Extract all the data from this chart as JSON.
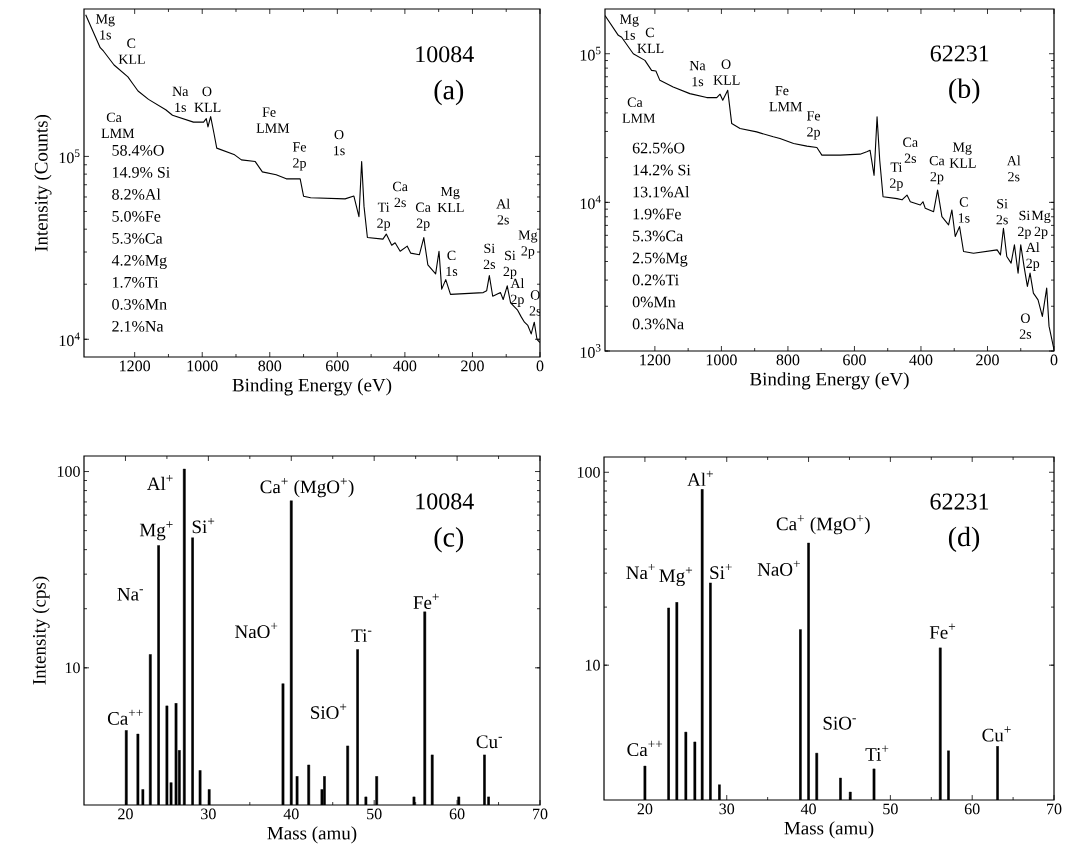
{
  "chart_data": [
    {
      "type": "line",
      "title": "10084",
      "subtitle": "(a)",
      "xlabel": "Binding Energy (eV)",
      "ylabel": "Intensity (Counts)",
      "log": "y",
      "xlim": [
        1350,
        0
      ],
      "xticks": [
        1200,
        1000,
        800,
        600,
        400,
        200,
        0
      ],
      "ylim": [
        8000,
        640000
      ],
      "yticks": [
        {
          "value": 10000,
          "label": "10$^{4}$"
        },
        {
          "value": 100000,
          "label": "10$^{5}$"
        }
      ],
      "series": [
        {
          "color": "#000000",
          "x": [
            1345,
            1302,
            1292,
            1261,
            1220,
            1205,
            1190,
            1159,
            1108,
            1088,
            1026,
            996,
            988,
            983,
            975,
            965,
            957,
            904,
            884,
            843,
            822,
            781,
            751,
            710,
            700,
            679,
            577,
            551,
            536,
            528,
            521,
            511,
            465,
            455,
            439,
            429,
            414,
            393,
            383,
            357,
            344,
            332,
            309,
            299,
            291,
            279,
            265,
            168,
            158,
            150,
            140,
            117,
            109,
            97,
            87,
            67,
            56,
            46,
            36,
            26,
            17,
            9,
            0
          ],
          "values": [
            595000,
            393000,
            376000,
            316000,
            272000,
            249000,
            228000,
            205000,
            180000,
            168000,
            154000,
            154000,
            161000,
            145000,
            165000,
            133000,
            111000,
            102000,
            95700,
            93700,
            82300,
            79400,
            75400,
            75400,
            60600,
            59400,
            58600,
            60700,
            46800,
            93700,
            53300,
            36000,
            35300,
            37600,
            32700,
            33700,
            30300,
            32300,
            29600,
            29000,
            36000,
            25500,
            22800,
            30300,
            18800,
            21200,
            17600,
            18000,
            18400,
            22300,
            17200,
            18000,
            16500,
            19600,
            15800,
            14500,
            13300,
            12400,
            11900,
            10700,
            12400,
            10000,
            9600
          ]
        }
      ],
      "annotations": [
        "58.4%O",
        "14.9% Si",
        "8.2%Al",
        "5.0%Fe",
        "5.3%Ca",
        "4.2%Mg",
        "1.7%Ti",
        "0.3%Mn",
        "2.1%Na",
        "Mg 1s",
        "C KLL",
        "Ca LMM",
        "Na 1s",
        "O KLL",
        "Fe LMM",
        "Fe 2p",
        "O 1s",
        "Ti 2p",
        "Ca 2s",
        "Ca 2p",
        "Mg KLL",
        "C 1s",
        "Si 2s",
        "Al 2s",
        "Si 2p",
        "Al 2p",
        "Mg 2p",
        "O 2s"
      ]
    },
    {
      "type": "line",
      "title": "62231",
      "subtitle": "(b)",
      "xlabel": "Binding Energy (eV)",
      "log": "y",
      "xlim": [
        1350,
        0
      ],
      "xticks": [
        1200,
        1000,
        800,
        600,
        400,
        200,
        0
      ],
      "ylim": [
        1000,
        200000
      ],
      "yticks": [
        {
          "value": 1000,
          "label": "10$^{3}$"
        },
        {
          "value": 10000,
          "label": "10$^{4}$"
        },
        {
          "value": 100000,
          "label": "10$^{5}$"
        }
      ],
      "series": [
        {
          "color": "#000000",
          "x": [
            1350,
            1310,
            1300,
            1265,
            1230,
            1210,
            1197,
            1185,
            1145,
            1095,
            1044,
            1014,
            1004,
            996,
            981,
            969,
            944,
            894,
            844,
            824,
            783,
            743,
            713,
            698,
            643,
            583,
            563,
            553,
            541,
            532,
            524,
            514,
            472,
            457,
            442,
            432,
            402,
            394,
            387,
            362,
            350,
            337,
            317,
            307,
            297,
            284,
            272,
            242,
            171,
            161,
            152,
            142,
            129,
            119,
            108,
            100,
            90,
            80,
            72,
            62,
            48,
            35,
            22,
            15,
            0
          ],
          "values": [
            181000,
            133000,
            129000,
            100000,
            90200,
            77300,
            76500,
            66200,
            59700,
            53900,
            50700,
            50700,
            53400,
            48700,
            56700,
            33900,
            31400,
            29800,
            27600,
            26900,
            24900,
            23900,
            23400,
            20800,
            20800,
            21100,
            21900,
            22400,
            15200,
            37600,
            19200,
            10900,
            10600,
            10400,
            11200,
            10100,
            9600,
            10100,
            9120,
            8660,
            12100,
            8020,
            7050,
            8890,
            5890,
            6870,
            4670,
            4550,
            4790,
            4430,
            6700,
            4320,
            3900,
            5180,
            3340,
            5180,
            3700,
            2720,
            3340,
            2450,
            2210,
            1710,
            2650,
            1470,
            1020
          ]
        }
      ],
      "annotations": [
        "62.5%O",
        "14.2% Si",
        "13.1%Al",
        "1.9%Fe",
        "5.3%Ca",
        "2.5%Mg",
        "0.2%Ti",
        "0%Mn",
        "0.3%Na",
        "Mg 1s",
        "C KLL",
        "Ca LMM",
        "Na 1s",
        "O KLL",
        "Fe LMM",
        "Fe 2p",
        "Ti 2p",
        "Ca 2s",
        "Ca 2p",
        "Mg KLL",
        "C 1s",
        "Si 2s",
        "Al 2s",
        "Si 2p",
        "Mg 2p",
        "Al 2p",
        "O 2s"
      ]
    },
    {
      "type": "bar",
      "title": "10084",
      "subtitle": "(c)",
      "xlabel": "Mass (amu)",
      "ylabel": "Intensity (cps)",
      "log": "y",
      "xlim": [
        15,
        70
      ],
      "xticks": [
        20,
        30,
        40,
        50,
        60,
        70
      ],
      "ylim": [
        2,
        120
      ],
      "yticks": [
        10,
        100
      ],
      "series": [
        {
          "color": "#000000",
          "x": [
            20.1,
            21.5,
            22.1,
            23,
            24,
            25,
            25.5,
            26.1,
            26.5,
            27.1,
            28.1,
            29,
            30.1,
            39,
            40,
            40.7,
            42.1,
            43.7,
            44,
            46.8,
            48,
            49,
            50.3,
            54.8,
            56.1,
            57,
            60.2,
            63.3,
            63.8
          ],
          "values": [
            4.8,
            4.6,
            2.4,
            11.7,
            42,
            6.4,
            2.6,
            6.6,
            3.8,
            103,
            46,
            3.0,
            2.4,
            8.3,
            71,
            2.8,
            3.2,
            2.4,
            2.8,
            4.0,
            12.4,
            2.2,
            2.8,
            2.2,
            19.3,
            3.6,
            2.2,
            3.6,
            2.2
          ]
        }
      ],
      "annotations": [
        "Ca$^{++}$",
        "Na$^{-}$",
        "Mg$^{+}$",
        "Al$^{+}$",
        "Si$^{+}$",
        "Ca$^{+}$ (MgO$^{+}$)",
        "NaO$^{+}$",
        "SiO$^{+}$",
        "Ti$^{-}$",
        "Fe$^{+}$",
        "Cu$^{-}$"
      ]
    },
    {
      "type": "bar",
      "title": "62231",
      "subtitle": "(d)",
      "xlabel": "Mass (amu)",
      "log": "y",
      "xlim": [
        15,
        70
      ],
      "xticks": [
        20,
        30,
        40,
        50,
        60,
        70
      ],
      "ylim": [
        2,
        120
      ],
      "yticks": [
        10,
        100
      ],
      "series": [
        {
          "color": "#000000",
          "x": [
            20,
            22.9,
            23.9,
            25,
            26.1,
            27,
            28,
            29.1,
            39,
            40,
            41,
            43.9,
            45.1,
            48,
            56.1,
            57.1,
            63.1
          ],
          "values": [
            3.0,
            19.8,
            21.2,
            4.5,
            4.0,
            81.6,
            26.7,
            2.4,
            15.3,
            43,
            3.5,
            2.6,
            2.2,
            2.9,
            12.3,
            3.6,
            3.8
          ]
        }
      ],
      "annotations": [
        "Ca$^{++}$",
        "Na$^{+}$",
        "Mg$^{+}$",
        "Al$^{+}$",
        "Si$^{+}$",
        "Ca$^{+}$ (MgO$^{+}$)",
        "NaO$^{+}$",
        "SiO$^{-}$",
        "Ti$^{+}$",
        "Fe$^{+}$",
        "Cu$^{+}$"
      ]
    }
  ]
}
